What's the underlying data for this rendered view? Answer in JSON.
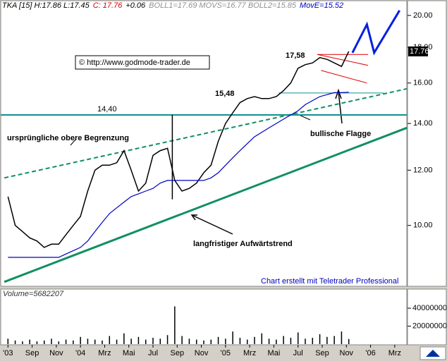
{
  "header": [
    {
      "text": "TKA [15] H:17.86 L:17.45",
      "color": "#000000"
    },
    {
      "text": "C: 17.76",
      "color": "#d00000"
    },
    {
      "text": "+0.06",
      "color": "#000000"
    },
    {
      "text": "BOLL1=17.69 MOVS=16.77 BOLL2=15.85",
      "color": "#909090"
    },
    {
      "text": "MovE=15.52",
      "color": "#0000c0"
    }
  ],
  "chart_data": [
    {
      "type": "line",
      "log": true,
      "x": [
        0,
        0.6,
        1.2,
        1.8,
        2.4,
        3,
        3.6,
        4.2,
        4.8,
        5.4,
        6,
        6.6,
        7.2,
        7.8,
        8.4,
        9,
        9.6,
        10.2,
        10.8,
        11.4,
        12,
        12.6,
        13.2,
        13.8,
        14.4,
        15,
        15.6,
        16.2,
        16.8,
        17.4,
        18,
        18.6,
        19.2,
        19.8,
        20.4,
        21,
        21.6,
        22.2,
        22.8,
        23.4,
        24,
        24.6,
        25.2,
        25.8,
        26.4,
        27,
        27.6,
        28.2
      ],
      "series": [
        {
          "color": "#000000",
          "values": [
            11.0,
            10.0,
            9.8,
            9.6,
            9.5,
            9.3,
            9.4,
            9.4,
            9.7,
            10.0,
            10.3,
            11.2,
            12.0,
            12.2,
            12.2,
            12.3,
            12.8,
            12.0,
            11.2,
            11.5,
            12.6,
            12.8,
            12.9,
            11.6,
            11.2,
            11.3,
            11.5,
            11.9,
            12.2,
            13.2,
            14.0,
            14.5,
            15.0,
            15.2,
            15.3,
            15.2,
            15.2,
            15.3,
            15.6,
            16.0,
            16.8,
            17.0,
            17.1,
            17.4,
            17.3,
            17.1,
            16.9,
            17.76
          ]
        },
        {
          "color": "#0000c0",
          "values": [
            9.0,
            9.0,
            9.0,
            9.0,
            9.0,
            9.0,
            9.0,
            9.0,
            9.1,
            9.2,
            9.3,
            9.5,
            9.8,
            10.1,
            10.4,
            10.6,
            10.8,
            11.0,
            11.1,
            11.2,
            11.3,
            11.5,
            11.6,
            11.6,
            11.6,
            11.6,
            11.6,
            11.6,
            11.7,
            11.9,
            12.2,
            12.5,
            12.8,
            13.1,
            13.4,
            13.6,
            13.8,
            14.0,
            14.2,
            14.4,
            14.6,
            14.9,
            15.1,
            15.3,
            15.4,
            15.5,
            15.5,
            15.52
          ]
        }
      ],
      "last_price": {
        "value": 17.76,
        "label": "17.76"
      },
      "xlim": [
        -0.6,
        33
      ],
      "xticks": [
        {
          "value": 0,
          "label": "'03"
        },
        {
          "value": 2,
          "label": "Sep"
        },
        {
          "value": 4,
          "label": "Nov"
        },
        {
          "value": 6,
          "label": "'04"
        },
        {
          "value": 8,
          "label": "Mrz"
        },
        {
          "value": 10,
          "label": "Mai"
        },
        {
          "value": 12,
          "label": "Jul"
        },
        {
          "value": 14,
          "label": "Sep"
        },
        {
          "value": 16,
          "label": "Nov"
        },
        {
          "value": 18,
          "label": "'05"
        },
        {
          "value": 20,
          "label": "Mrz"
        },
        {
          "value": 22,
          "label": "Mai"
        },
        {
          "value": 24,
          "label": "Jul"
        },
        {
          "value": 26,
          "label": "Sep"
        },
        {
          "value": 28,
          "label": "Nov"
        },
        {
          "value": 30,
          "label": "'06"
        },
        {
          "value": 32,
          "label": "Mrz"
        }
      ],
      "ylim": [
        8.2,
        20.8
      ],
      "yticks": [
        {
          "value": 10,
          "label": "10.00"
        },
        {
          "value": 12,
          "label": "12.00"
        },
        {
          "value": 14,
          "label": "14.00"
        },
        {
          "value": 16,
          "label": "16.00"
        },
        {
          "value": 18,
          "label": "18.00"
        },
        {
          "value": 20,
          "label": "20.00"
        }
      ],
      "lines": [
        {
          "x": [
            -0.3,
            33
          ],
          "y": [
            8.3,
            13.8
          ],
          "color": "#109060",
          "dash": false,
          "width": 3
        },
        {
          "x": [
            -0.3,
            33
          ],
          "y": [
            11.7,
            15.7
          ],
          "color": "#109060",
          "dash": true,
          "width": 2
        },
        {
          "x": [
            -0.6,
            33
          ],
          "y": [
            14.4,
            14.4
          ],
          "color": "#109090",
          "dash": false,
          "width": 2
        },
        {
          "x": [
            22.4,
            31.1
          ],
          "y": [
            15.48,
            15.48
          ],
          "color": "#109090",
          "dash": false,
          "width": 1
        },
        {
          "x": [
            13.6,
            13.6
          ],
          "y": [
            10.9,
            14.4
          ],
          "color": "#000000",
          "dash": false,
          "width": 1.5
        },
        {
          "x": [
            25.6,
            29.8
          ],
          "y": [
            17.58,
            17.58
          ],
          "color": "#e00000",
          "dash": false,
          "width": 1
        },
        {
          "x": [
            25.6,
            29.8
          ],
          "y": [
            17.58,
            16.96
          ],
          "color": "#e00000",
          "dash": false,
          "width": 1
        },
        {
          "x": [
            25.9,
            29.7
          ],
          "y": [
            16.68,
            16.0
          ],
          "color": "#e00000",
          "dash": false,
          "width": 1
        },
        {
          "x": [
            28.5,
            29.7,
            30.3,
            32.4
          ],
          "y": [
            17.68,
            19.41,
            17.68,
            20.33
          ],
          "color": "#0020e0",
          "dash": false,
          "width": 3
        }
      ],
      "annotations": [
        "© http://www.godmode-trader.de",
        "17,58",
        "15,48",
        "14,40",
        "ursprüngliche obere Begrenzung",
        "bullische Flagge",
        "langfristiger Aufwärtstrend",
        "Chart erstellt mit Teletrader Professional"
      ]
    },
    {
      "type": "bar",
      "title": "Volume=5682207",
      "color": "#000000",
      "values": [
        6000000,
        4000000,
        3000000,
        5000000,
        3000000,
        4000000,
        6000000,
        3000000,
        5000000,
        4000000,
        8000000,
        6000000,
        5000000,
        4000000,
        9000000,
        5000000,
        12000000,
        6000000,
        8000000,
        5000000,
        7000000,
        6000000,
        10000000,
        42000000,
        9000000,
        6000000,
        5000000,
        4000000,
        5000000,
        8000000,
        6000000,
        14000000,
        7000000,
        5000000,
        8000000,
        12000000,
        6000000,
        5000000,
        9000000,
        7000000,
        13000000,
        6000000,
        7000000,
        11000000,
        8000000,
        9000000,
        14000000,
        5682207
      ],
      "ylim": [
        0,
        55000000
      ],
      "yticks": [
        20000000,
        40000000
      ]
    }
  ]
}
